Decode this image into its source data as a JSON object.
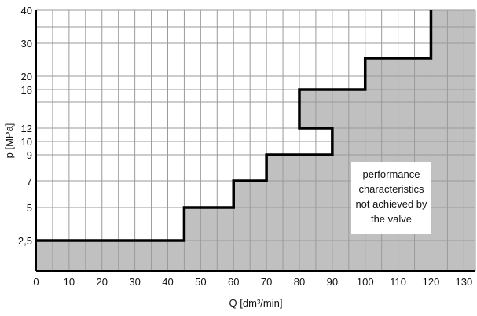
{
  "chart_data": {
    "type": "line",
    "xlabel": "Q [dm³/min]",
    "ylabel": "p [MPa]",
    "xlim": [
      0,
      133.5
    ],
    "x_ticks": [
      0,
      10,
      20,
      30,
      40,
      50,
      60,
      70,
      80,
      90,
      100,
      110,
      120,
      130
    ],
    "y_ticks": [
      2.5,
      5,
      7,
      9,
      10,
      12,
      18,
      20,
      30,
      40
    ],
    "y_tick_labels": [
      "2,5",
      "5",
      "7",
      "9",
      "10",
      "12",
      "18",
      "20",
      "30",
      "40"
    ],
    "y_ticks_unlabeled": [
      1
    ],
    "y_scale": "nonlinear (tick spacing as printed)",
    "grid": true,
    "series": [
      {
        "values": [
          {
            "x": 0,
            "y": 2.5
          },
          {
            "x": 45,
            "y": 2.5
          },
          {
            "x": 45,
            "y": 5
          },
          {
            "x": 60,
            "y": 5
          },
          {
            "x": 60,
            "y": 7
          },
          {
            "x": 70,
            "y": 7
          },
          {
            "x": 70,
            "y": 9
          },
          {
            "x": 90,
            "y": 9
          },
          {
            "x": 90,
            "y": 12
          },
          {
            "x": 80,
            "y": 12
          },
          {
            "x": 80,
            "y": 18
          },
          {
            "x": 100,
            "y": 18
          },
          {
            "x": 100,
            "y": 25
          },
          {
            "x": 120,
            "y": 25
          },
          {
            "x": 120,
            "y": 40
          }
        ]
      }
    ],
    "annotations": [
      {
        "text": "performance\ncharacteristics\nnot achieved by\nthe valve",
        "x": 110,
        "y": 7
      }
    ],
    "colors": {
      "shaded_region": "#c0c0c0",
      "line": "#000000",
      "grid": "#9a9a9a",
      "background": "#ffffff"
    }
  }
}
